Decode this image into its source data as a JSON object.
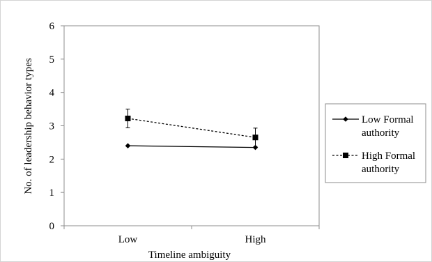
{
  "chart_data": {
    "type": "line",
    "categories": [
      "Low",
      "High"
    ],
    "xlabel": "Timeline ambiguity",
    "ylabel": "No. of leadership behavior types",
    "ylim": [
      0,
      6
    ],
    "yticks": [
      "0",
      "1",
      "2",
      "3",
      "4",
      "5",
      "6"
    ],
    "grid": false,
    "legend_position": "right",
    "series": [
      {
        "name": "Low Formal authority",
        "name_lines": [
          "Low Formal",
          "authority"
        ],
        "values": [
          2.4,
          2.35
        ],
        "marker": "diamond",
        "line_style": "solid",
        "color": "#000000"
      },
      {
        "name": "High Formal authority",
        "name_lines": [
          "High Formal",
          "authority"
        ],
        "values": [
          3.22,
          2.65
        ],
        "error": [
          0.28,
          0.28
        ],
        "marker": "square",
        "line_style": "dashed",
        "color": "#000000"
      }
    ]
  }
}
